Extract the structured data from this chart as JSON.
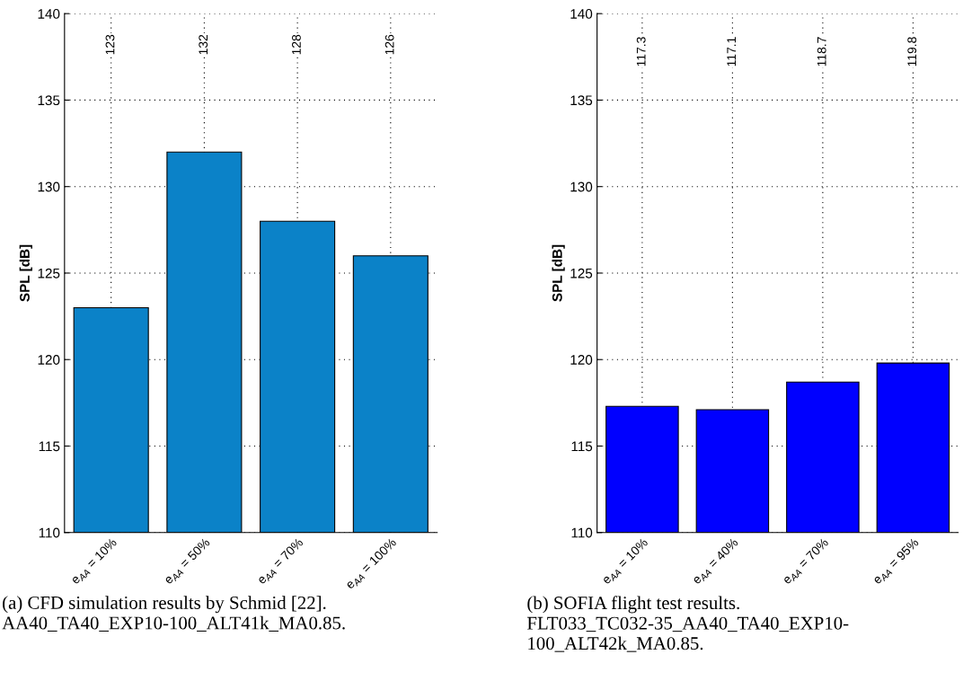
{
  "chart_data": [
    {
      "type": "bar",
      "categories": [
        "e$_{AA}$ = 10%",
        "e$_{AA}$ = 50%",
        "e$_{AA}$ = 70%",
        "e$_{AA}$ = 100%"
      ],
      "values": [
        123,
        132,
        128,
        126
      ],
      "color": "#0b82c8",
      "ylabel": "SPL [dB]",
      "ylim": [
        110,
        140
      ],
      "yticks": [
        110,
        115,
        120,
        125,
        130,
        135,
        140
      ],
      "grid": true,
      "annotations": [
        {
          "text": "123",
          "x": "e$_{AA}$ = 10%",
          "y": 138.2
        },
        {
          "text": "132",
          "x": "e$_{AA}$ = 50%",
          "y": 138.2
        },
        {
          "text": "128",
          "x": "e$_{AA}$ = 70%",
          "y": 138.2
        },
        {
          "text": "126",
          "x": "e$_{AA}$ = 100%",
          "y": 138.2
        },
        "(a) CFD simulation results by Schmid [22].\nAA40_TA40_EXP10-100_ALT41k_MA0.85."
      ]
    },
    {
      "type": "bar",
      "categories": [
        "e$_{AA}$ = 10%",
        "e$_{AA}$ = 40%",
        "e$_{AA}$ = 70%",
        "e$_{AA}$ = 95%"
      ],
      "values": [
        117.3,
        117.1,
        118.7,
        119.8
      ],
      "color": "#0000ff",
      "ylabel": "SPL [dB]",
      "ylim": [
        110,
        140
      ],
      "yticks": [
        110,
        115,
        120,
        125,
        130,
        135,
        140
      ],
      "grid": true,
      "annotations": [
        {
          "text": "117.3",
          "x": "e$_{AA}$ = 10%",
          "y": 137.8
        },
        {
          "text": "117.1",
          "x": "e$_{AA}$ = 40%",
          "y": 137.8
        },
        {
          "text": "118.7",
          "x": "e$_{AA}$ = 70%",
          "y": 137.8
        },
        {
          "text": "119.8",
          "x": "e$_{AA}$ = 95%",
          "y": 137.8
        },
        "(b) SOFIA flight test results.\nFLT033_TC032-35_AA40_TA40_EXP10-\n100_ALT42k_MA0.85."
      ]
    }
  ]
}
